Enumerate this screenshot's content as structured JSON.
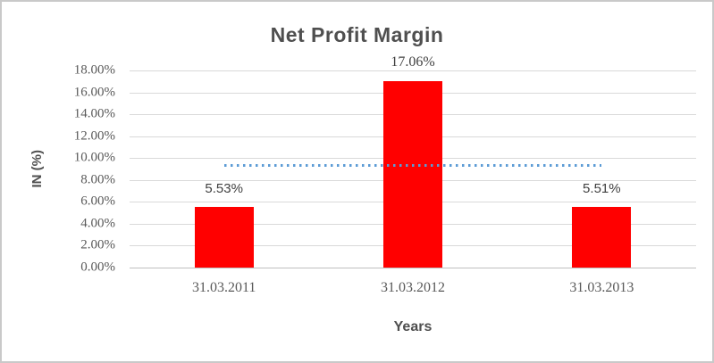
{
  "chart_data": {
    "type": "bar",
    "title": "Net Profit Margin",
    "xlabel": "Years",
    "ylabel": "IN (%)",
    "categories": [
      "31.03.2011",
      "31.03.2012",
      "31.03.2013"
    ],
    "values": [
      5.53,
      17.06,
      5.51
    ],
    "data_labels": [
      "5.53%",
      "17.06%",
      "5.51%"
    ],
    "y_tick_values": [
      18,
      16,
      14,
      12,
      10,
      8,
      6,
      4,
      2,
      0
    ],
    "y_tick_labels": [
      "18.00%",
      "16.00%",
      "14.00%",
      "12.00%",
      "10.00%",
      "8.00%",
      "6.00%",
      "4.00%",
      "2.00%",
      "0.00%"
    ],
    "ylim": [
      0,
      18
    ],
    "grid": true,
    "legend": "none",
    "bar_color": "#ff0000",
    "gridline_color": "#d9d9d9",
    "trendline": {
      "type": "linear",
      "value": 9.4,
      "style": "dotted",
      "color": "#5b9bd5",
      "spans_categories": [
        "31.03.2011",
        "31.03.2013"
      ]
    }
  }
}
